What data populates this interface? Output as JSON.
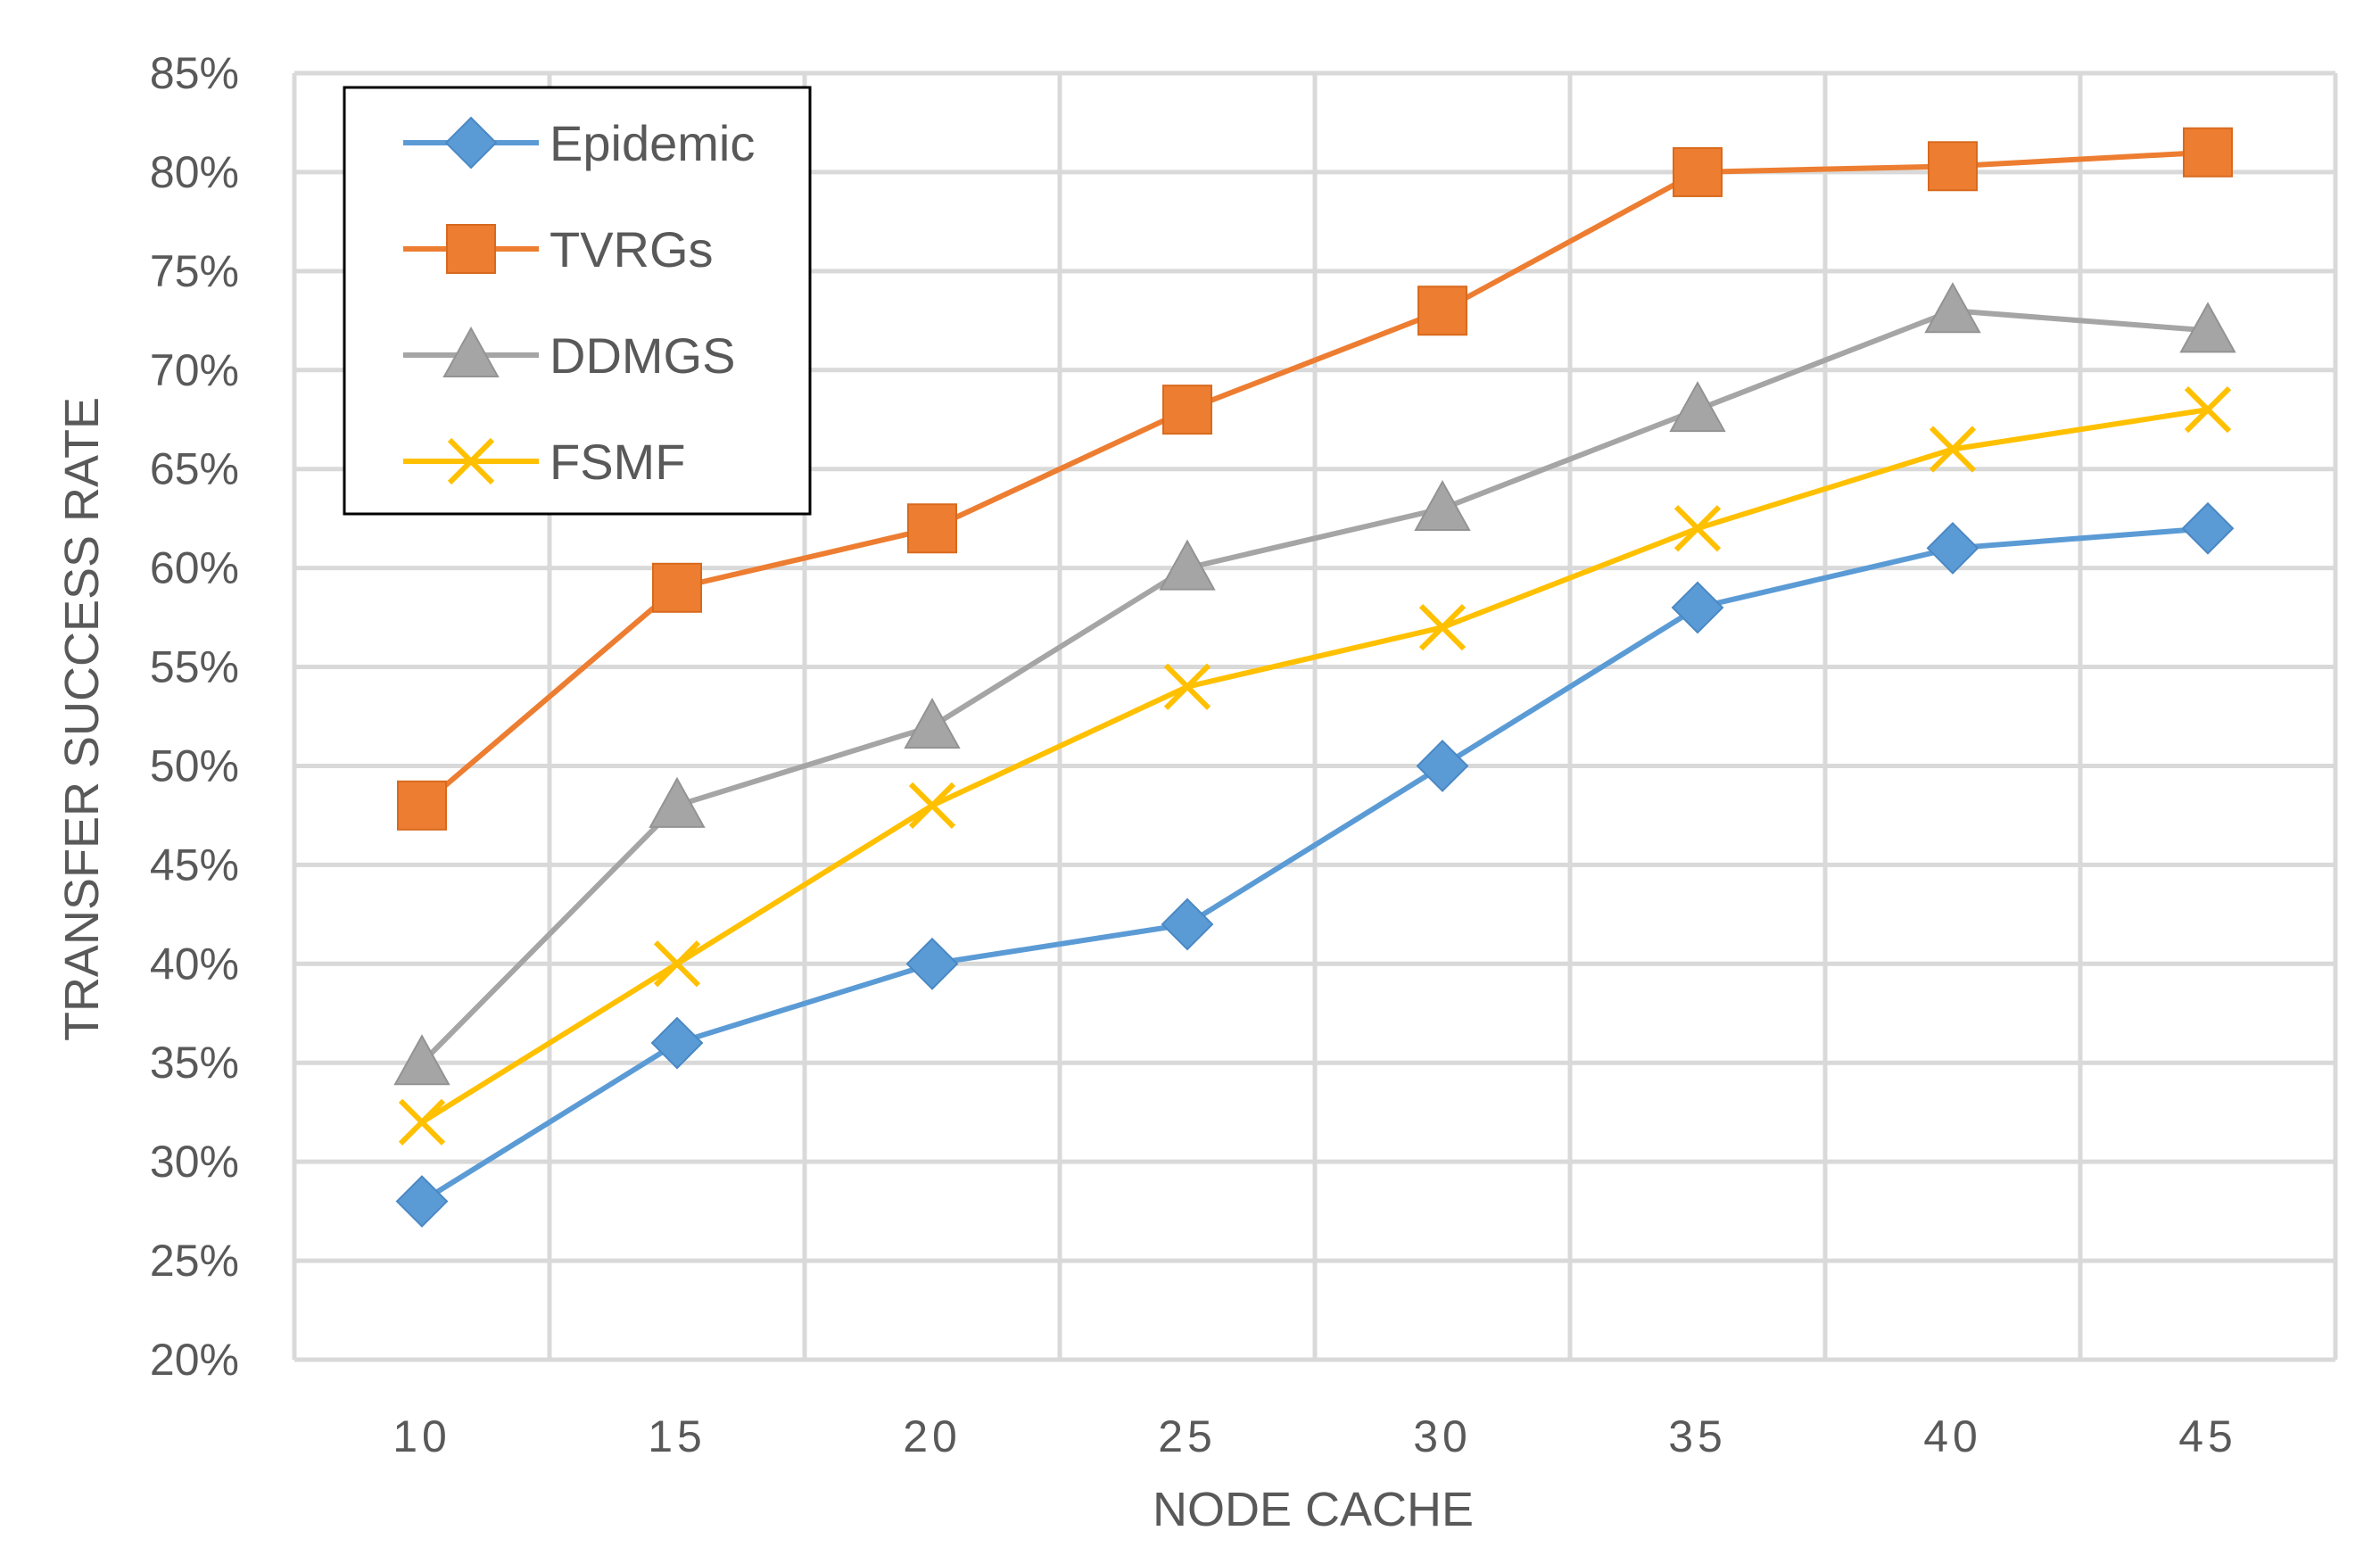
{
  "chart_data": {
    "type": "line",
    "title": "",
    "xlabel": "NODE CACHE",
    "ylabel": "TRANSFER SUCCESS RATE",
    "x": [
      10,
      15,
      20,
      25,
      30,
      35,
      40,
      45
    ],
    "x_tick_labels": [
      "10",
      "15",
      "20",
      "25",
      "30",
      "35",
      "40",
      "45"
    ],
    "ylim": [
      20,
      85
    ],
    "y_step": 5,
    "y_tick_labels": [
      "20%",
      "25%",
      "30%",
      "35%",
      "40%",
      "45%",
      "50%",
      "55%",
      "60%",
      "65%",
      "70%",
      "75%",
      "80%",
      "85%"
    ],
    "grid": true,
    "legend_position": "top-left",
    "series": [
      {
        "name": "Epidemic",
        "color": "#5B9BD5",
        "marker": "diamond",
        "values": [
          28,
          36,
          40,
          42,
          50,
          58,
          61,
          62
        ]
      },
      {
        "name": "TVRGs",
        "color": "#ED7D31",
        "marker": "square",
        "values": [
          48,
          59,
          62,
          68,
          73,
          80,
          80.3,
          81
        ]
      },
      {
        "name": "DDMGS",
        "color": "#A5A5A5",
        "marker": "triangle",
        "values": [
          35,
          48,
          52,
          60,
          63,
          68,
          73,
          72
        ]
      },
      {
        "name": "FSMF",
        "color": "#FFC000",
        "marker": "x",
        "values": [
          32,
          40,
          48,
          54,
          57,
          62,
          66,
          68
        ]
      }
    ]
  }
}
